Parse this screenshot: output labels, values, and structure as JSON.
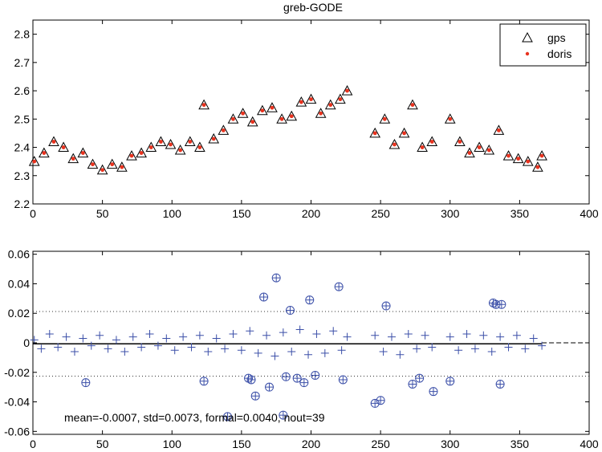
{
  "chart_data": [
    {
      "type": "scatter",
      "title": "greb-GODE",
      "xlim": [
        0,
        400
      ],
      "ylim": [
        2.2,
        2.85
      ],
      "xticks": [
        "0",
        "50",
        "100",
        "150",
        "200",
        "250",
        "300",
        "350",
        "400"
      ],
      "yticks": [
        "2.2",
        "2.3",
        "2.4",
        "2.5",
        "2.6",
        "2.7",
        "2.8"
      ],
      "legend_position": "top-right",
      "grid": false,
      "series": [
        {
          "name": "gps",
          "marker": "open-triangle",
          "color": "#000000",
          "x": [
            1,
            8,
            15,
            22,
            29,
            36,
            43,
            50,
            57,
            64,
            71,
            78,
            85,
            92,
            99,
            106,
            113,
            120,
            123,
            130,
            137,
            144,
            151,
            158,
            165,
            172,
            179,
            186,
            193,
            200,
            207,
            214,
            221,
            226,
            246,
            253,
            260,
            267,
            273,
            280,
            287,
            300,
            307,
            314,
            321,
            328,
            335,
            342,
            349,
            356,
            363,
            366
          ],
          "y": [
            2.35,
            2.38,
            2.42,
            2.4,
            2.36,
            2.38,
            2.34,
            2.32,
            2.34,
            2.33,
            2.37,
            2.38,
            2.4,
            2.42,
            2.41,
            2.39,
            2.42,
            2.4,
            2.55,
            2.43,
            2.46,
            2.5,
            2.52,
            2.49,
            2.53,
            2.54,
            2.5,
            2.51,
            2.56,
            2.57,
            2.52,
            2.55,
            2.57,
            2.6,
            2.45,
            2.5,
            2.41,
            2.45,
            2.55,
            2.4,
            2.42,
            2.5,
            2.42,
            2.38,
            2.4,
            2.39,
            2.46,
            2.37,
            2.36,
            2.35,
            2.33,
            2.37
          ]
        },
        {
          "name": "doris",
          "marker": "dot",
          "color": "#e8321e",
          "x": [
            1,
            8,
            15,
            22,
            29,
            36,
            43,
            50,
            57,
            64,
            71,
            78,
            85,
            92,
            99,
            106,
            113,
            120,
            123,
            130,
            137,
            144,
            151,
            158,
            165,
            172,
            179,
            186,
            193,
            200,
            207,
            214,
            221,
            226,
            246,
            253,
            260,
            267,
            273,
            280,
            287,
            300,
            307,
            314,
            321,
            328,
            335,
            342,
            349,
            356,
            363,
            366
          ],
          "y": [
            2.35,
            2.38,
            2.42,
            2.4,
            2.36,
            2.38,
            2.34,
            2.32,
            2.34,
            2.33,
            2.37,
            2.38,
            2.4,
            2.42,
            2.41,
            2.39,
            2.42,
            2.4,
            2.55,
            2.43,
            2.46,
            2.5,
            2.52,
            2.49,
            2.53,
            2.54,
            2.5,
            2.51,
            2.56,
            2.57,
            2.52,
            2.55,
            2.57,
            2.6,
            2.45,
            2.5,
            2.41,
            2.45,
            2.55,
            2.4,
            2.42,
            2.5,
            2.42,
            2.38,
            2.4,
            2.39,
            2.46,
            2.37,
            2.36,
            2.35,
            2.33,
            2.37
          ]
        }
      ]
    },
    {
      "type": "scatter",
      "title": "",
      "xlim": [
        0,
        400
      ],
      "ylim": [
        -0.062,
        0.062
      ],
      "xticks": [
        "0",
        "50",
        "100",
        "150",
        "200",
        "250",
        "300",
        "350",
        "400"
      ],
      "yticks": [
        "-0.06",
        "-0.04",
        "-0.02",
        "0",
        "0.02",
        "0.04",
        "0.06"
      ],
      "reference_lines": {
        "dotted": [
          0.0212,
          -0.0226
        ],
        "solid": [
          -0.0007
        ],
        "dashed": [
          0
        ]
      },
      "annotation": "mean=-0.0007, std=0.0073, formal=0.0040, nout=39",
      "series": [
        {
          "marker": "plus",
          "color": "#3b4fa8",
          "x": [
            1,
            6,
            12,
            18,
            24,
            30,
            36,
            42,
            48,
            54,
            60,
            66,
            72,
            78,
            84,
            90,
            96,
            102,
            108,
            114,
            120,
            126,
            132,
            138,
            144,
            150,
            156,
            162,
            168,
            174,
            180,
            186,
            192,
            198,
            204,
            210,
            216,
            222,
            226,
            246,
            252,
            258,
            264,
            270,
            276,
            282,
            287,
            300,
            306,
            312,
            318,
            324,
            330,
            336,
            342,
            348,
            354,
            360,
            366
          ],
          "y": [
            0.002,
            -0.004,
            0.006,
            -0.003,
            0.004,
            -0.006,
            0.003,
            -0.002,
            0.005,
            -0.004,
            0.002,
            -0.006,
            0.004,
            -0.003,
            0.006,
            -0.002,
            0.003,
            -0.005,
            0.004,
            -0.003,
            0.005,
            -0.006,
            0.003,
            -0.004,
            0.006,
            -0.005,
            0.008,
            -0.007,
            0.005,
            -0.009,
            0.007,
            -0.006,
            0.009,
            -0.008,
            0.006,
            -0.007,
            0.008,
            -0.005,
            0.004,
            0.005,
            -0.006,
            0.004,
            -0.008,
            0.006,
            -0.004,
            0.005,
            -0.003,
            0.004,
            -0.005,
            0.006,
            -0.004,
            0.005,
            -0.006,
            0.004,
            -0.003,
            0.005,
            -0.004,
            0.003,
            -0.002
          ]
        },
        {
          "marker": "circle-plus",
          "color": "#3b4fa8",
          "x": [
            38,
            123,
            155,
            157,
            166,
            175,
            180,
            185,
            190,
            199,
            203,
            220,
            223,
            246,
            250,
            254,
            273,
            278,
            288,
            300,
            331,
            333,
            336,
            337,
            140,
            160,
            170,
            182,
            195
          ],
          "y": [
            -0.027,
            -0.026,
            -0.024,
            -0.025,
            0.031,
            0.044,
            -0.049,
            0.022,
            -0.024,
            0.029,
            -0.022,
            0.038,
            -0.025,
            -0.041,
            -0.039,
            0.025,
            -0.028,
            -0.024,
            -0.033,
            -0.026,
            0.027,
            0.026,
            -0.028,
            0.026,
            -0.05,
            -0.036,
            -0.03,
            -0.023,
            -0.027
          ]
        }
      ]
    }
  ]
}
